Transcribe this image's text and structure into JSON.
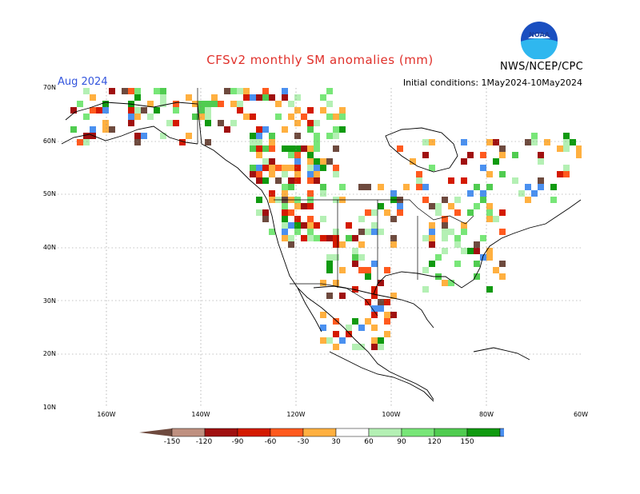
{
  "header": {
    "title": "CFSv2 monthly SM anomalies (mm)",
    "month": "Aug 2024",
    "agency": "NWS/NCEP/CPC",
    "initial_conditions": "Initial conditions: 1May2024-10May2024",
    "logo_text": "NOAA"
  },
  "axes": {
    "lat_labels": [
      "70N",
      "60N",
      "50N",
      "40N",
      "30N",
      "20N",
      "10N"
    ],
    "lon_labels": [
      "160W",
      "140W",
      "120W",
      "100W",
      "80W",
      "60W"
    ]
  },
  "colorbar": {
    "labels": [
      "-150",
      "-120",
      "-90",
      "-60",
      "-30",
      "30",
      "60",
      "90",
      "120",
      "150"
    ],
    "colors": [
      "#6e4a3e",
      "#bf9080",
      "#a01010",
      "#d41a00",
      "#ff5a1e",
      "#ffb040",
      "#ffffff",
      "#b4f0b4",
      "#78e678",
      "#50cc50",
      "#109a10",
      "#4a90f0",
      "#2060e0"
    ]
  },
  "colors": {
    "title": "#e0302a",
    "month": "#3355dd",
    "grid": "#888888",
    "coast": "#000000"
  }
}
